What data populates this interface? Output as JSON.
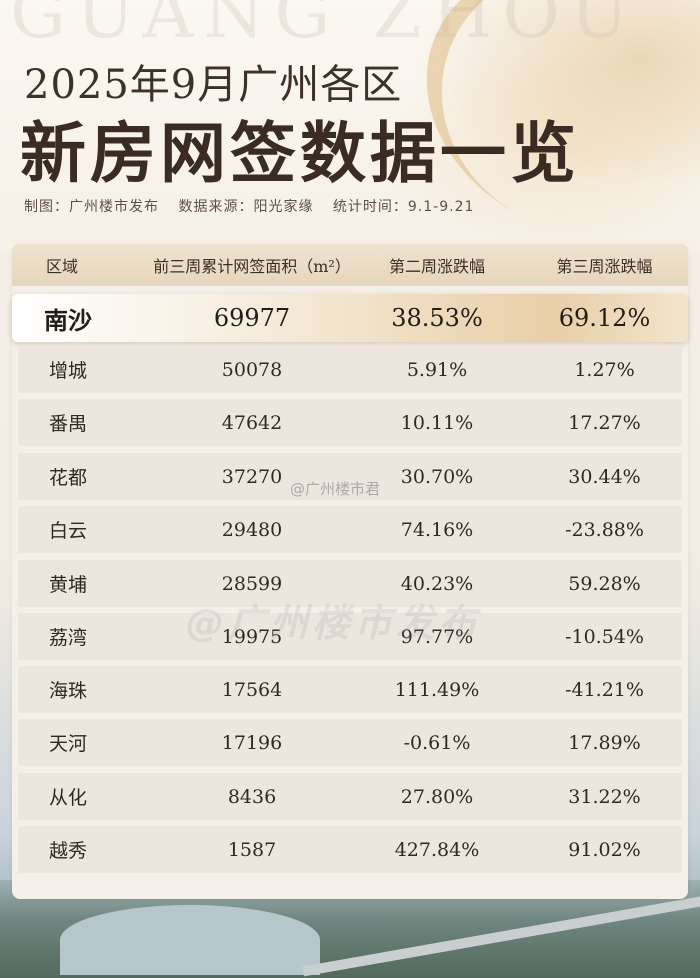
{
  "header": {
    "bg_word": "GUANG ZHOU",
    "title_line1": "2025年9月广州各区",
    "title_line2": "新房网签数据一览",
    "credit_maker": "制图：广州楼市发布",
    "credit_source": "数据来源：阳光家缘",
    "credit_period": "统计时间：9.1-9.21"
  },
  "table": {
    "columns": [
      "区域",
      "前三周累计网签面积（m²）",
      "第二周涨跌幅",
      "第三周涨跌幅"
    ],
    "rows": [
      {
        "district": "南沙",
        "area": "69977",
        "week2": "38.53%",
        "week3": "69.12%"
      },
      {
        "district": "增城",
        "area": "50078",
        "week2": "5.91%",
        "week3": "1.27%"
      },
      {
        "district": "番禺",
        "area": "47642",
        "week2": "10.11%",
        "week3": "17.27%"
      },
      {
        "district": "花都",
        "area": "37270",
        "week2": "30.70%",
        "week3": "30.44%"
      },
      {
        "district": "白云",
        "area": "29480",
        "week2": "74.16%",
        "week3": "-23.88%"
      },
      {
        "district": "黄埔",
        "area": "28599",
        "week2": "40.23%",
        "week3": "59.28%"
      },
      {
        "district": "荔湾",
        "area": "19975",
        "week2": "97.77%",
        "week3": "-10.54%"
      },
      {
        "district": "海珠",
        "area": "17564",
        "week2": "111.49%",
        "week3": "-41.21%"
      },
      {
        "district": "天河",
        "area": "17196",
        "week2": "-0.61%",
        "week3": "17.89%"
      },
      {
        "district": "从化",
        "area": "8436",
        "week2": "27.80%",
        "week3": "31.22%"
      },
      {
        "district": "越秀",
        "area": "1587",
        "week2": "427.84%",
        "week3": "91.02%"
      }
    ]
  },
  "watermarks": {
    "small": "@广州楼市君",
    "big": "@广州楼市发布"
  }
}
